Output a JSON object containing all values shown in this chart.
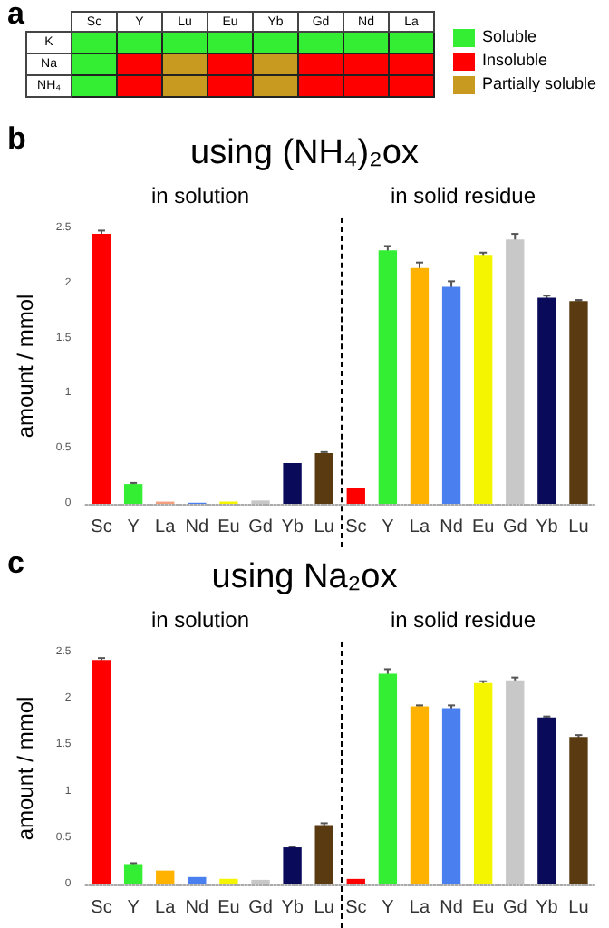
{
  "chart_data": [
    {
      "type": "other",
      "annotations": [
        "a",
        "Soluble",
        "Insoluble",
        "Partially soluble"
      ],
      "categories": [
        "Sc",
        "Y",
        "Lu",
        "Eu",
        "Yb",
        "Gd",
        "Nd",
        "La"
      ],
      "y_categories": [
        "K",
        "Na",
        "NH₄"
      ],
      "colors": [
        "#33ee33",
        "#33ee33",
        "#33ee33",
        "#33ee33",
        "#33ee33",
        "#33ee33",
        "#33ee33",
        "#33ee33",
        "#33ee33",
        "#ff0000",
        "#c89a20",
        "#ff0000",
        "#c89a20",
        "#ff0000",
        "#ff0000",
        "#ff0000",
        "#33ee33",
        "#ff0000",
        "#c89a20",
        "#ff0000",
        "#c89a20",
        "#ff0000",
        "#ff0000",
        "#ff0000"
      ]
    },
    {
      "type": "bar",
      "title": "using (NH₄)₂ox",
      "ylabel": "amount / mmol",
      "annotations": [
        "b",
        "in solution",
        "in solid residue"
      ],
      "categories": [
        "Sc",
        "Y",
        "La",
        "Nd",
        "Eu",
        "Gd",
        "Yb",
        "Lu",
        "Sc",
        "Y",
        "La",
        "Nd",
        "Eu",
        "Gd",
        "Yb",
        "Lu"
      ],
      "values": [
        2.45,
        0.18,
        0.02,
        0.01,
        0.02,
        0.03,
        0.37,
        0.46,
        0.14,
        2.3,
        2.14,
        1.97,
        2.26,
        2.4,
        1.87,
        1.84
      ],
      "errors": [
        0.03,
        0.01,
        null,
        null,
        null,
        null,
        null,
        0.01,
        null,
        0.04,
        0.05,
        0.05,
        0.02,
        0.05,
        0.02,
        0.01
      ],
      "colors": [
        "#ff0000",
        "#33ee33",
        "#f4a080",
        "#4a7ff0",
        "#f5f500",
        "#c8c8c8",
        "#0a0a5a",
        "#5a3a10",
        "#ff0000",
        "#33ee33",
        "#ffb300",
        "#4a7ff0",
        "#f5f500",
        "#c8c8c8",
        "#0a0a5a",
        "#5a3a10"
      ],
      "ylim": [
        0,
        2.5
      ],
      "yticks": [
        0,
        0.5,
        1,
        1.5,
        2,
        2.5
      ]
    },
    {
      "type": "bar",
      "title": "using Na₂ox",
      "ylabel": "amount / mmol",
      "annotations": [
        "c",
        "in solution",
        "in solid residue"
      ],
      "categories": [
        "Sc",
        "Y",
        "La",
        "Nd",
        "Eu",
        "Gd",
        "Yb",
        "Lu",
        "Sc",
        "Y",
        "La",
        "Nd",
        "Eu",
        "Gd",
        "Yb",
        "Lu"
      ],
      "values": [
        2.42,
        0.22,
        0.15,
        0.08,
        0.06,
        0.05,
        0.4,
        0.64,
        0.06,
        2.27,
        1.92,
        1.9,
        2.17,
        2.2,
        1.8,
        1.59
      ],
      "errors": [
        0.02,
        0.01,
        null,
        null,
        null,
        null,
        0.01,
        0.02,
        null,
        0.05,
        0.01,
        0.03,
        0.02,
        0.03,
        0.01,
        0.02
      ],
      "colors": [
        "#ff0000",
        "#33ee33",
        "#ffb300",
        "#4a7ff0",
        "#f5f500",
        "#c8c8c8",
        "#0a0a5a",
        "#5a3a10",
        "#ff0000",
        "#33ee33",
        "#ffb300",
        "#4a7ff0",
        "#f5f500",
        "#c8c8c8",
        "#0a0a5a",
        "#5a3a10"
      ],
      "ylim": [
        0,
        2.5
      ],
      "yticks": [
        0,
        0.5,
        1,
        1.5,
        2,
        2.5
      ]
    }
  ]
}
